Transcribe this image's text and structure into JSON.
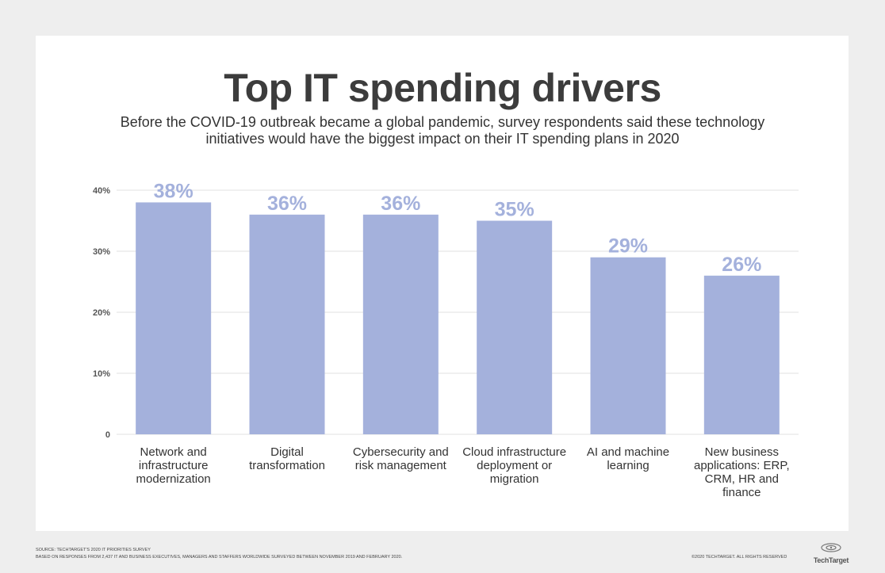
{
  "title": "Top IT spending drivers",
  "subtitle": "Before the COVID-19 outbreak became a global pandemic, survey respondents said these technology initiatives would have the biggest impact on their IT spending plans in 2020",
  "chart_data": {
    "type": "bar",
    "title": "Top IT spending drivers",
    "categories": [
      "Network and infrastructure modernization",
      "Digital transformation",
      "Cybersecurity and risk management",
      "Cloud infrastructure deployment or migration",
      "AI and machine learning",
      "New business applications: ERP, CRM, HR and finance"
    ],
    "values": [
      38,
      36,
      36,
      35,
      29,
      26
    ],
    "value_labels": [
      "38%",
      "36%",
      "36%",
      "35%",
      "29%",
      "26%"
    ],
    "yticks": [
      {
        "value": 0,
        "label": "0"
      },
      {
        "value": 10,
        "label": "10%"
      },
      {
        "value": 20,
        "label": "20%"
      },
      {
        "value": 30,
        "label": "30%"
      },
      {
        "value": 40,
        "label": "40%"
      }
    ],
    "ylim": [
      0,
      40
    ],
    "xlabel": "",
    "ylabel": "",
    "grid": true,
    "bar_color": "#a4b1dc",
    "label_color": "#a4b1dc"
  },
  "footer": {
    "source_line1": "Source: TechTarget's 2020 IT Priorities Survey",
    "source_line2": "Based on responses from 2,437 IT and business executives, managers and staffers worldwide surveyed between November 2019 and February 2020.",
    "copyright": "©2020 TechTarget. All rights reserved",
    "logo_text": "TechTarget"
  }
}
